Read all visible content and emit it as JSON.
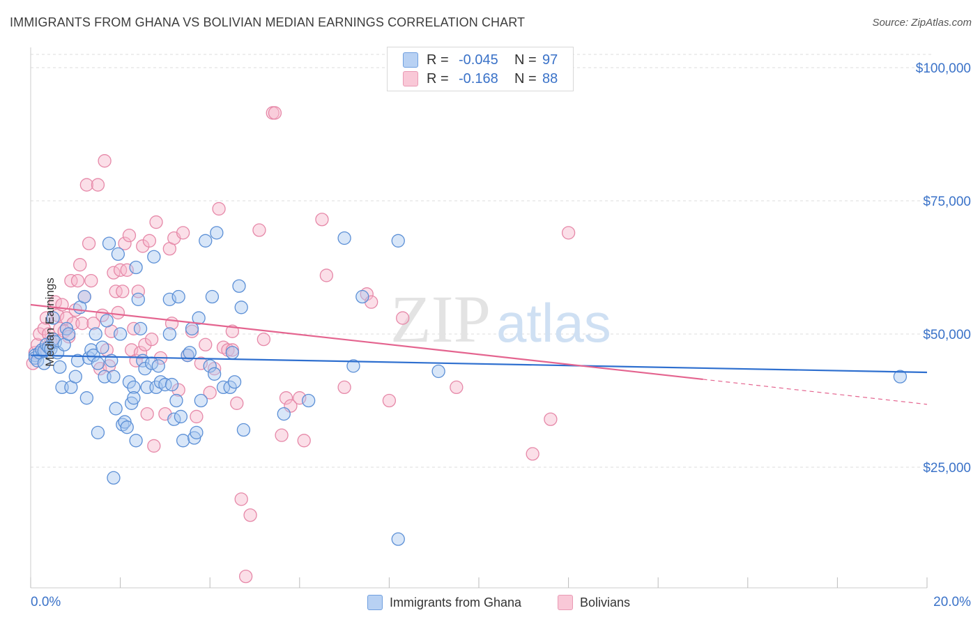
{
  "header": {
    "title": "IMMIGRANTS FROM GHANA VS BOLIVIAN MEDIAN EARNINGS CORRELATION CHART",
    "source": "Source: ZipAtlas.com"
  },
  "watermark": {
    "zip": "ZIP",
    "atlas": "atlas"
  },
  "legend": {
    "ghana": {
      "r_label": "R =",
      "r_value": "-0.045",
      "n_label": "N =",
      "n_value": "97"
    },
    "bolivia": {
      "r_label": "R =",
      "r_value": "-0.168",
      "n_label": "N =",
      "n_value": "88"
    }
  },
  "bottom_legend": {
    "ghana": "Immigrants from Ghana",
    "bolivia": "Bolivians"
  },
  "colors": {
    "ghana_fill": "#a9c8f0",
    "ghana_stroke": "#5b8fd6",
    "ghana_line": "#2e6fcf",
    "bolivia_fill": "#f6b8cb",
    "bolivia_stroke": "#e688a8",
    "bolivia_line": "#e4648f",
    "axis_label": "#3a72c8",
    "grid": "#dddddd"
  },
  "chart_data": {
    "type": "scatter",
    "title": "IMMIGRANTS FROM GHANA VS BOLIVIAN MEDIAN EARNINGS CORRELATION CHART",
    "xlabel": "",
    "ylabel": "Median Earnings",
    "xlim": [
      0,
      20
    ],
    "ylim": [
      0,
      105000
    ],
    "x_tick_labels": [
      "0.0%",
      "20.0%"
    ],
    "y_ticks": [
      25000,
      50000,
      75000,
      100000
    ],
    "y_tick_labels": [
      "$25,000",
      "$50,000",
      "$75,000",
      "$100,000"
    ],
    "grid": true,
    "series": [
      {
        "name": "Immigrants from Ghana",
        "r": -0.045,
        "n": 97,
        "trend": {
          "x": [
            0,
            20
          ],
          "y": [
            46000,
            42800
          ]
        },
        "points": [
          [
            0.1,
            46000
          ],
          [
            0.1,
            45500
          ],
          [
            0.15,
            45000
          ],
          [
            0.2,
            46500
          ],
          [
            0.25,
            47000
          ],
          [
            0.3,
            46800
          ],
          [
            0.35,
            48000
          ],
          [
            0.4,
            47500
          ],
          [
            0.45,
            47200
          ],
          [
            0.3,
            44500
          ],
          [
            0.5,
            49000
          ],
          [
            0.55,
            48500
          ],
          [
            0.6,
            46500
          ],
          [
            0.5,
            53000
          ],
          [
            0.65,
            43800
          ],
          [
            0.7,
            40000
          ],
          [
            0.75,
            48000
          ],
          [
            0.8,
            51000
          ],
          [
            0.85,
            50000
          ],
          [
            0.9,
            40000
          ],
          [
            1.0,
            42000
          ],
          [
            1.05,
            45000
          ],
          [
            1.1,
            55000
          ],
          [
            1.2,
            57000
          ],
          [
            1.25,
            38000
          ],
          [
            1.3,
            45500
          ],
          [
            1.35,
            47000
          ],
          [
            1.4,
            46000
          ],
          [
            1.45,
            50000
          ],
          [
            1.5,
            44500
          ],
          [
            1.5,
            31500
          ],
          [
            1.6,
            47500
          ],
          [
            1.65,
            42000
          ],
          [
            1.7,
            52500
          ],
          [
            1.75,
            67000
          ],
          [
            1.8,
            45000
          ],
          [
            1.85,
            42000
          ],
          [
            1.9,
            36000
          ],
          [
            1.95,
            65000
          ],
          [
            2.0,
            50000
          ],
          [
            2.05,
            33000
          ],
          [
            2.1,
            33500
          ],
          [
            2.15,
            32500
          ],
          [
            2.2,
            41000
          ],
          [
            2.25,
            37000
          ],
          [
            2.3,
            40000
          ],
          [
            2.35,
            62500
          ],
          [
            2.35,
            30000
          ],
          [
            2.4,
            56500
          ],
          [
            2.45,
            51000
          ],
          [
            2.5,
            45000
          ],
          [
            2.55,
            43500
          ],
          [
            2.6,
            40000
          ],
          [
            2.7,
            44500
          ],
          [
            2.75,
            64500
          ],
          [
            2.8,
            40000
          ],
          [
            2.85,
            44000
          ],
          [
            2.9,
            41000
          ],
          [
            3.0,
            40500
          ],
          [
            3.1,
            50000
          ],
          [
            3.1,
            56500
          ],
          [
            3.15,
            40500
          ],
          [
            3.2,
            34000
          ],
          [
            3.25,
            37500
          ],
          [
            3.3,
            57000
          ],
          [
            3.35,
            34500
          ],
          [
            3.4,
            30000
          ],
          [
            3.5,
            46000
          ],
          [
            3.55,
            46500
          ],
          [
            3.6,
            51000
          ],
          [
            3.65,
            30500
          ],
          [
            3.7,
            31500
          ],
          [
            3.75,
            53000
          ],
          [
            3.8,
            37500
          ],
          [
            3.9,
            67500
          ],
          [
            4.0,
            44000
          ],
          [
            4.05,
            57000
          ],
          [
            4.1,
            42500
          ],
          [
            4.15,
            69000
          ],
          [
            4.3,
            40000
          ],
          [
            4.45,
            40000
          ],
          [
            4.5,
            46500
          ],
          [
            4.55,
            41000
          ],
          [
            4.65,
            59000
          ],
          [
            4.7,
            55000
          ],
          [
            4.75,
            32000
          ],
          [
            5.65,
            35000
          ],
          [
            6.2,
            37500
          ],
          [
            7.0,
            68000
          ],
          [
            7.2,
            44000
          ],
          [
            7.4,
            57000
          ],
          [
            8.2,
            67500
          ],
          [
            9.1,
            43000
          ],
          [
            19.4,
            42000
          ],
          [
            8.2,
            11500
          ],
          [
            1.85,
            23000
          ],
          [
            2.3,
            38000
          ]
        ]
      },
      {
        "name": "Bolivians",
        "r": -0.168,
        "n": 88,
        "trend": {
          "x": [
            0,
            15
          ],
          "y": [
            55500,
            41500
          ]
        },
        "trend_dashed": {
          "x": [
            15,
            20
          ],
          "y": [
            41500,
            36800
          ]
        },
        "points": [
          [
            0.05,
            44500
          ],
          [
            0.1,
            46500
          ],
          [
            0.15,
            48000
          ],
          [
            0.2,
            50000
          ],
          [
            0.25,
            47000
          ],
          [
            0.3,
            51000
          ],
          [
            0.35,
            53000
          ],
          [
            0.4,
            50000
          ],
          [
            0.45,
            48500
          ],
          [
            0.5,
            49000
          ],
          [
            0.55,
            56000
          ],
          [
            0.6,
            53500
          ],
          [
            0.65,
            51000
          ],
          [
            0.7,
            55500
          ],
          [
            0.75,
            50500
          ],
          [
            0.8,
            53000
          ],
          [
            0.85,
            49500
          ],
          [
            0.9,
            60000
          ],
          [
            0.95,
            52000
          ],
          [
            1.0,
            54500
          ],
          [
            1.05,
            60000
          ],
          [
            1.1,
            63000
          ],
          [
            1.15,
            52000
          ],
          [
            1.2,
            57000
          ],
          [
            1.25,
            78000
          ],
          [
            1.3,
            67000
          ],
          [
            1.35,
            60000
          ],
          [
            1.4,
            52000
          ],
          [
            1.5,
            78000
          ],
          [
            1.55,
            43500
          ],
          [
            1.6,
            53500
          ],
          [
            1.65,
            82500
          ],
          [
            1.7,
            47000
          ],
          [
            1.75,
            44000
          ],
          [
            1.8,
            50500
          ],
          [
            1.85,
            61500
          ],
          [
            1.9,
            58000
          ],
          [
            1.95,
            54000
          ],
          [
            2.0,
            62000
          ],
          [
            2.05,
            58000
          ],
          [
            2.1,
            67000
          ],
          [
            2.15,
            62000
          ],
          [
            2.2,
            68500
          ],
          [
            2.25,
            47000
          ],
          [
            2.3,
            51000
          ],
          [
            2.35,
            45000
          ],
          [
            2.4,
            58000
          ],
          [
            2.45,
            46500
          ],
          [
            2.5,
            66500
          ],
          [
            2.55,
            48000
          ],
          [
            2.6,
            35000
          ],
          [
            2.65,
            67500
          ],
          [
            2.7,
            49000
          ],
          [
            2.75,
            29000
          ],
          [
            2.8,
            71000
          ],
          [
            2.9,
            45500
          ],
          [
            3.0,
            35000
          ],
          [
            3.1,
            66000
          ],
          [
            3.15,
            52000
          ],
          [
            3.2,
            68000
          ],
          [
            3.3,
            39500
          ],
          [
            3.4,
            69000
          ],
          [
            3.5,
            46000
          ],
          [
            3.6,
            50500
          ],
          [
            3.7,
            34500
          ],
          [
            3.8,
            44500
          ],
          [
            3.9,
            48000
          ],
          [
            4.0,
            39000
          ],
          [
            4.1,
            43500
          ],
          [
            4.2,
            73500
          ],
          [
            4.3,
            47500
          ],
          [
            4.4,
            47000
          ],
          [
            4.5,
            47000
          ],
          [
            4.6,
            37000
          ],
          [
            4.7,
            19000
          ],
          [
            4.8,
            4500
          ],
          [
            4.9,
            16000
          ],
          [
            5.1,
            69500
          ],
          [
            5.2,
            49000
          ],
          [
            5.4,
            91500
          ],
          [
            5.45,
            91500
          ],
          [
            5.6,
            31000
          ],
          [
            5.7,
            38000
          ],
          [
            5.8,
            36500
          ],
          [
            6.0,
            38000
          ],
          [
            6.1,
            30000
          ],
          [
            6.5,
            71500
          ],
          [
            6.6,
            61000
          ]
        ],
        "points_extra": [
          [
            4.5,
            50500
          ],
          [
            7.0,
            40000
          ],
          [
            7.5,
            57500
          ],
          [
            7.6,
            56000
          ],
          [
            8.0,
            37500
          ],
          [
            8.3,
            53000
          ],
          [
            11.2,
            27500
          ],
          [
            11.6,
            34000
          ],
          [
            12.0,
            69000
          ],
          [
            9.5,
            40000
          ]
        ]
      }
    ]
  }
}
